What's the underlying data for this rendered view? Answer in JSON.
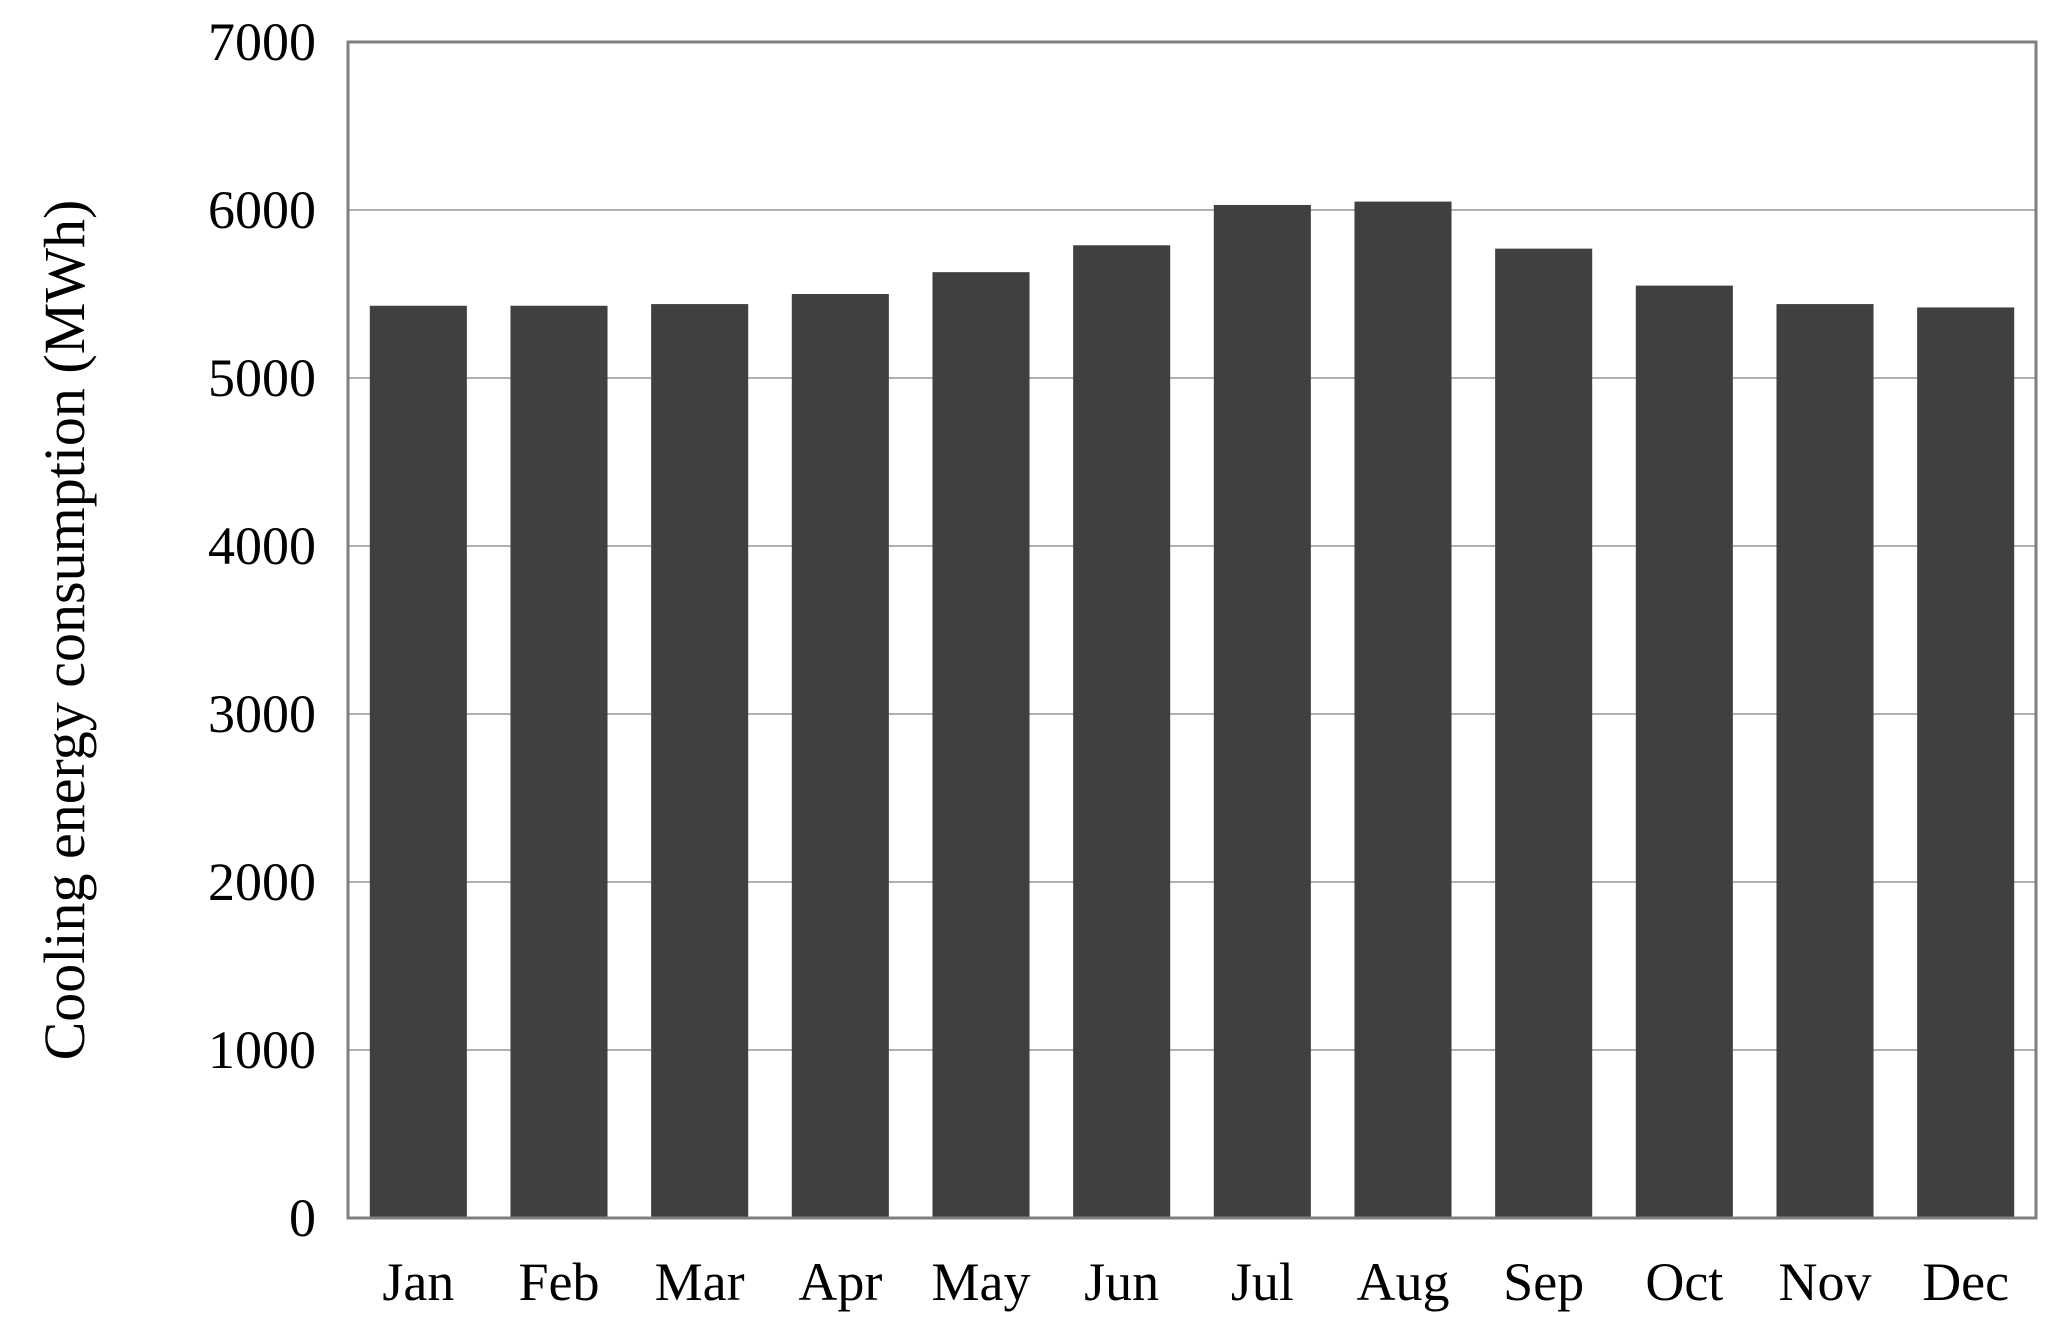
{
  "chart_data": {
    "type": "bar",
    "title": "",
    "xlabel": "",
    "ylabel": "Cooling energy consumption (MWh)",
    "categories": [
      "Jan",
      "Feb",
      "Mar",
      "Apr",
      "May",
      "Jun",
      "Jul",
      "Aug",
      "Sep",
      "Oct",
      "Nov",
      "Dec"
    ],
    "values": [
      5430,
      5430,
      5440,
      5500,
      5630,
      5790,
      6030,
      6050,
      5770,
      5550,
      5440,
      5420
    ],
    "ylim": [
      0,
      7000
    ],
    "yticks": [
      "0",
      "1000",
      "2000",
      "3000",
      "4000",
      "5000",
      "6000",
      "7000"
    ],
    "grid": true,
    "legend": "none",
    "bar_color": "#404040",
    "grid_color": "#b0b0b0",
    "frame_color": "#7f7f7f"
  }
}
